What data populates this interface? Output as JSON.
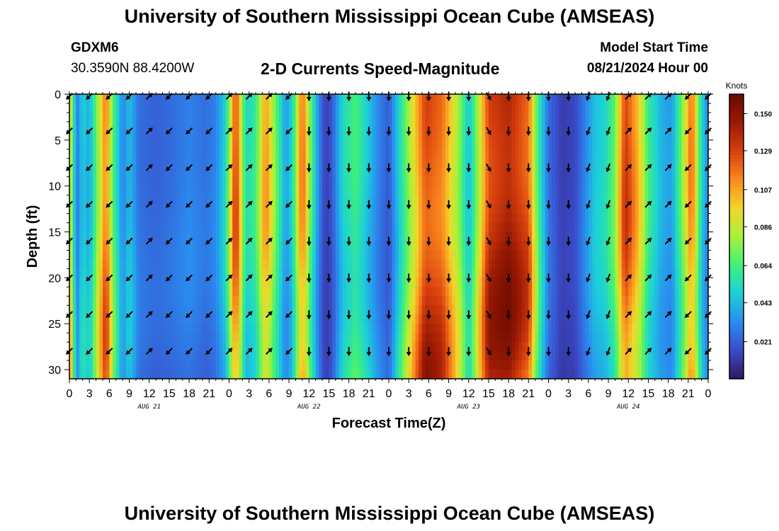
{
  "page": {
    "title_top": "University of Southern Mississippi Ocean Cube (AMSEAS)",
    "title_bottom": "University of Southern Mississippi Ocean Cube (AMSEAS)",
    "station": "GDXM6",
    "coords": "30.3590N  88.4200W",
    "subtitle": "2-D Currents Speed-Magnitude",
    "model_start_label": "Model Start Time",
    "model_start_value": "08/21/2024 Hour 00"
  },
  "chart_data": {
    "type": "heatmap",
    "title": "2-D Currents Speed-Magnitude",
    "xlabel": "Forecast Time(Z)",
    "ylabel": "Depth (ft)",
    "x_ticks": [
      "0",
      "3",
      "6",
      "9",
      "12",
      "15",
      "18",
      "21",
      "0",
      "3",
      "6",
      "9",
      "12",
      "15",
      "18",
      "21",
      "0",
      "3",
      "6",
      "9",
      "12",
      "15",
      "18",
      "21",
      "0",
      "3",
      "6",
      "9",
      "12",
      "15",
      "18",
      "21",
      "0"
    ],
    "x_hours": [
      0,
      3,
      6,
      9,
      12,
      15,
      18,
      21,
      24,
      27,
      30,
      33,
      36,
      39,
      42,
      45,
      48,
      51,
      54,
      57,
      60,
      63,
      66,
      69,
      72,
      75,
      78,
      81,
      84,
      87,
      90,
      93,
      96
    ],
    "day_labels": [
      {
        "label": "AUG 21",
        "hour": 12
      },
      {
        "label": "AUG 22",
        "hour": 36
      },
      {
        "label": "AUG 23",
        "hour": 60
      },
      {
        "label": "AUG 24",
        "hour": 84
      }
    ],
    "xlim": [
      0,
      96
    ],
    "y_ticks": [
      "0",
      "5",
      "10",
      "15",
      "20",
      "25",
      "30"
    ],
    "y_values": [
      0,
      5,
      10,
      15,
      20,
      25,
      30
    ],
    "ylim": [
      0,
      31
    ],
    "colorbar": {
      "title": "Knots",
      "labels": [
        "0.150",
        "0.129",
        "0.107",
        "0.086",
        "0.064",
        "0.043",
        "0.021"
      ],
      "values": [
        0.15,
        0.129,
        0.107,
        0.086,
        0.064,
        0.043,
        0.021
      ],
      "range": [
        0.0,
        0.161
      ]
    },
    "palette": [
      "#2b1a5c",
      "#3b4ac8",
      "#2a8cf0",
      "#1cd0d8",
      "#3ef07a",
      "#a8f238",
      "#f2d62a",
      "#fb8a1e",
      "#d8400e",
      "#9b1a04",
      "#6a0a02"
    ],
    "speed_profile": [
      {
        "hour": 0,
        "speed": 0.11
      },
      {
        "hour": 0.5,
        "speed": 0.06
      },
      {
        "hour": 1.2,
        "speed": 0.03
      },
      {
        "hour": 2.0,
        "speed": 0.05
      },
      {
        "hour": 3.0,
        "speed": 0.04
      },
      {
        "hour": 4.0,
        "speed": 0.07
      },
      {
        "hour": 5.5,
        "speed": 0.12
      },
      {
        "hour": 6.5,
        "speed": 0.07
      },
      {
        "hour": 8.0,
        "speed": 0.03
      },
      {
        "hour": 9.0,
        "speed": 0.045
      },
      {
        "hour": 10.5,
        "speed": 0.025
      },
      {
        "hour": 13.0,
        "speed": 0.022
      },
      {
        "hour": 15.5,
        "speed": 0.025
      },
      {
        "hour": 18.0,
        "speed": 0.03
      },
      {
        "hour": 20.5,
        "speed": 0.025
      },
      {
        "hour": 22.0,
        "speed": 0.03
      },
      {
        "hour": 23.5,
        "speed": 0.05
      },
      {
        "hour": 25.0,
        "speed": 0.13
      },
      {
        "hour": 26.5,
        "speed": 0.05
      },
      {
        "hour": 28.0,
        "speed": 0.06
      },
      {
        "hour": 29.5,
        "speed": 0.11
      },
      {
        "hour": 31.0,
        "speed": 0.07
      },
      {
        "hour": 32.5,
        "speed": 0.035
      },
      {
        "hour": 33.5,
        "speed": 0.05
      },
      {
        "hour": 35.0,
        "speed": 0.12
      },
      {
        "hour": 36.5,
        "speed": 0.06
      },
      {
        "hour": 37.5,
        "speed": 0.03
      },
      {
        "hour": 38.5,
        "speed": 0.012
      },
      {
        "hour": 39.5,
        "speed": 0.02
      },
      {
        "hour": 41.0,
        "speed": 0.05
      },
      {
        "hour": 43.0,
        "speed": 0.065
      },
      {
        "hour": 45.0,
        "speed": 0.045
      },
      {
        "hour": 46.5,
        "speed": 0.03
      },
      {
        "hour": 48.0,
        "speed": 0.02
      },
      {
        "hour": 49.5,
        "speed": 0.05
      },
      {
        "hour": 51.0,
        "speed": 0.08
      },
      {
        "hour": 53.5,
        "speed": 0.13
      },
      {
        "hour": 56.0,
        "speed": 0.12
      },
      {
        "hour": 58.5,
        "speed": 0.08
      },
      {
        "hour": 60.0,
        "speed": 0.045
      },
      {
        "hour": 61.0,
        "speed": 0.07
      },
      {
        "hour": 63.0,
        "speed": 0.13
      },
      {
        "hour": 66.0,
        "speed": 0.14
      },
      {
        "hour": 69.0,
        "speed": 0.12
      },
      {
        "hour": 70.5,
        "speed": 0.06
      },
      {
        "hour": 72.0,
        "speed": 0.025
      },
      {
        "hour": 74.0,
        "speed": 0.012
      },
      {
        "hour": 76.0,
        "speed": 0.015
      },
      {
        "hour": 77.5,
        "speed": 0.03
      },
      {
        "hour": 79.0,
        "speed": 0.045
      },
      {
        "hour": 80.5,
        "speed": 0.05
      },
      {
        "hour": 82.0,
        "speed": 0.07
      },
      {
        "hour": 83.5,
        "speed": 0.13
      },
      {
        "hour": 85.5,
        "speed": 0.1
      },
      {
        "hour": 87.0,
        "speed": 0.06
      },
      {
        "hour": 89.0,
        "speed": 0.04
      },
      {
        "hour": 90.5,
        "speed": 0.035
      },
      {
        "hour": 92.0,
        "speed": 0.07
      },
      {
        "hour": 93.5,
        "speed": 0.12
      },
      {
        "hour": 95.0,
        "speed": 0.05
      },
      {
        "hour": 96.0,
        "speed": 0.03
      }
    ],
    "vector_hours": [
      0,
      3,
      6,
      9,
      12,
      15,
      18,
      21,
      24,
      27,
      30,
      33,
      36,
      39,
      42,
      45,
      48,
      51,
      54,
      57,
      60,
      63,
      66,
      69,
      72,
      75,
      78,
      81,
      84,
      87,
      90,
      93,
      96
    ],
    "vector_depths": [
      0,
      4,
      8,
      12,
      16,
      20,
      24,
      28
    ],
    "vector_direction_deg_by_hour": [
      225,
      225,
      225,
      225,
      45,
      225,
      225,
      225,
      45,
      45,
      45,
      225,
      180,
      180,
      180,
      180,
      180,
      180,
      180,
      180,
      180,
      150,
      180,
      180,
      180,
      180,
      200,
      200,
      45,
      45,
      45,
      225,
      225
    ]
  }
}
